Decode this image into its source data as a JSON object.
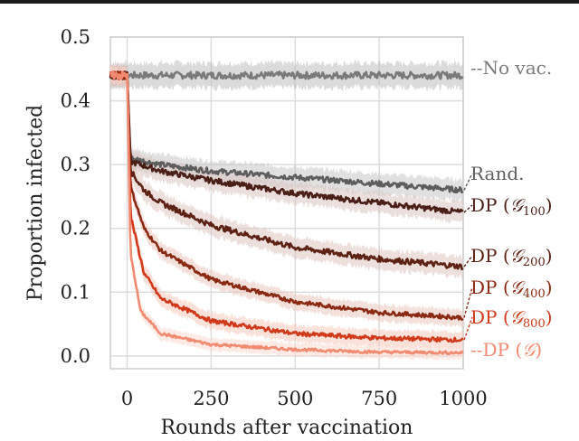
{
  "chart_data": {
    "type": "line",
    "title": "",
    "xlabel": "Rounds after vaccination",
    "ylabel": "Proportion infected",
    "xlim": [
      -50,
      1000
    ],
    "ylim": [
      -0.02,
      0.5
    ],
    "xticks": [
      0,
      250,
      500,
      750,
      1000
    ],
    "xtick_labels": [
      "0",
      "250",
      "500",
      "750",
      "1000"
    ],
    "yticks": [
      0.0,
      0.1,
      0.2,
      0.3,
      0.4,
      0.5
    ],
    "ytick_labels": [
      "0.0",
      "0.1",
      "0.2",
      "0.3",
      "0.4",
      "0.5"
    ],
    "grid": true,
    "legend": "inline labels at right end of each line",
    "pre_vaccination": {
      "x": [
        -50,
        0
      ],
      "value": 0.44
    },
    "series": [
      {
        "name": "No vac.",
        "label_parts": [
          "--No vac."
        ],
        "color": "#7a7a7a",
        "band_color": "#bdbdbd",
        "x": [
          0,
          10,
          100,
          250,
          500,
          750,
          1000
        ],
        "values": [
          0.44,
          0.44,
          0.44,
          0.44,
          0.44,
          0.44,
          0.44
        ],
        "noise": 0.005
      },
      {
        "name": "Rand.",
        "label_parts": [
          "Rand."
        ],
        "color": "#5d5d5d",
        "band_color": "#c7c7c7",
        "x": [
          0,
          10,
          100,
          250,
          500,
          750,
          1000
        ],
        "values": [
          0.44,
          0.31,
          0.3,
          0.29,
          0.28,
          0.27,
          0.26
        ],
        "noise": 0.004
      },
      {
        "name": "DP (Ĝ100)",
        "label_parts": [
          "DP (",
          "𝒢",
          "100",
          ")"
        ],
        "color": "#4a1f17",
        "band_color": "#d8c4c0",
        "x": [
          0,
          10,
          100,
          250,
          500,
          750,
          1000
        ],
        "values": [
          0.44,
          0.305,
          0.29,
          0.275,
          0.255,
          0.24,
          0.225
        ],
        "noise": 0.004
      },
      {
        "name": "DP (Ĝ200)",
        "label_parts": [
          "DP (",
          "𝒢",
          "200",
          ")"
        ],
        "color": "#5e2214",
        "band_color": "#dcc5bf",
        "x": [
          0,
          10,
          50,
          100,
          250,
          500,
          750,
          1000
        ],
        "values": [
          0.44,
          0.29,
          0.26,
          0.24,
          0.205,
          0.17,
          0.152,
          0.14
        ],
        "noise": 0.004
      },
      {
        "name": "DP (Ĝ400)",
        "label_parts": [
          "DP (",
          "𝒢",
          "400",
          ")"
        ],
        "color": "#8a2a12",
        "band_color": "#ebc7bd",
        "x": [
          0,
          10,
          50,
          100,
          250,
          500,
          750,
          1000
        ],
        "values": [
          0.44,
          0.265,
          0.2,
          0.165,
          0.12,
          0.085,
          0.068,
          0.06
        ],
        "noise": 0.003
      },
      {
        "name": "DP (Ĝ800)",
        "label_parts": [
          "DP (",
          "𝒢",
          "800",
          ")"
        ],
        "color": "#cf3a1a",
        "band_color": "#f6c9bc",
        "x": [
          0,
          10,
          50,
          100,
          250,
          500,
          750,
          1000
        ],
        "values": [
          0.44,
          0.22,
          0.13,
          0.09,
          0.055,
          0.035,
          0.028,
          0.025
        ],
        "noise": 0.003
      },
      {
        "name": "DP (G)",
        "label_parts": [
          "--DP (",
          "𝒢",
          ")"
        ],
        "color": "#f08a70",
        "band_color": "#fbd8cd",
        "x": [
          0,
          10,
          40,
          100,
          250,
          500,
          750,
          1000
        ],
        "values": [
          0.44,
          0.16,
          0.07,
          0.035,
          0.018,
          0.01,
          0.006,
          0.005
        ],
        "noise": 0.002
      }
    ]
  }
}
